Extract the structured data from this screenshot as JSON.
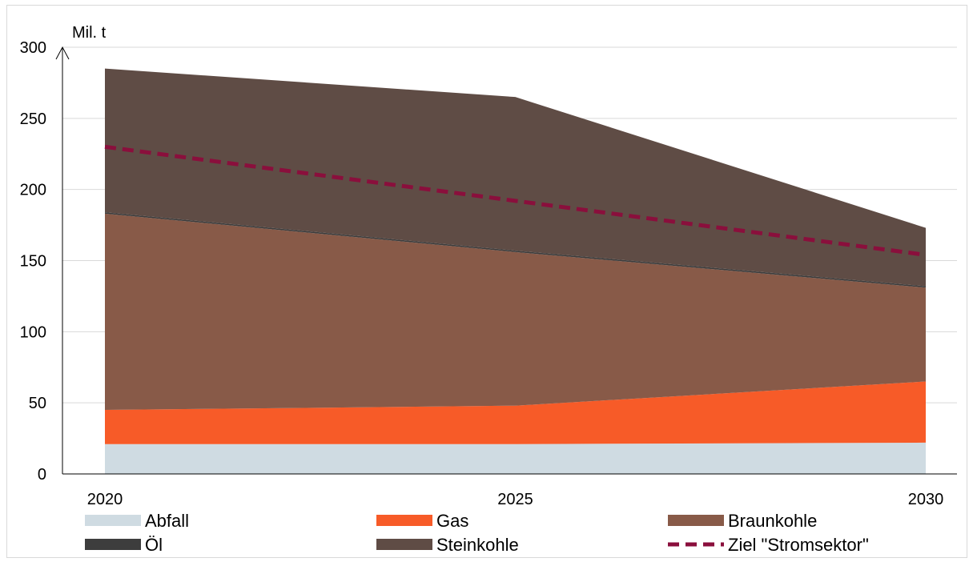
{
  "chart_data": {
    "type": "area",
    "x": [
      2020,
      2025,
      2030
    ],
    "x_tick_labels": [
      "2020",
      "2025",
      "2030"
    ],
    "y_unit": "Mil. t",
    "ylim": [
      0,
      300
    ],
    "y_ticks": [
      0,
      50,
      100,
      150,
      200,
      250,
      300
    ],
    "y_tick_labels": [
      "0",
      "50",
      "100",
      "150",
      "200",
      "250",
      "300"
    ],
    "stacked": true,
    "grid": true,
    "legend_position": "bottom",
    "series": [
      {
        "name": "Abfall",
        "color": "#cfdbe2",
        "values": [
          21,
          21,
          22
        ]
      },
      {
        "name": "Gas",
        "color": "#f75b28",
        "values": [
          24,
          27,
          43
        ]
      },
      {
        "name": "Braunkohle",
        "color": "#885a48",
        "values": [
          138,
          108,
          66
        ]
      },
      {
        "name": "Öl",
        "color": "#3d3d3d",
        "values": [
          1,
          1,
          1
        ]
      },
      {
        "name": "Steinkohle",
        "color": "#5f4c45",
        "values": [
          101,
          108,
          41
        ]
      }
    ],
    "target_line": {
      "name": "Ziel \"Stromsektor\"",
      "color": "#8a0f3c",
      "style": "dashed",
      "values": [
        230,
        192,
        154
      ]
    },
    "legend": [
      {
        "label": "Abfall",
        "kind": "box",
        "color": "#cfdbe2"
      },
      {
        "label": "Gas",
        "kind": "box",
        "color": "#f75b28"
      },
      {
        "label": "Braunkohle",
        "kind": "box",
        "color": "#885a48"
      },
      {
        "label": "Öl",
        "kind": "box",
        "color": "#3d3d3d"
      },
      {
        "label": "Steinkohle",
        "kind": "box",
        "color": "#5f4c45"
      },
      {
        "label": "Ziel \"Stromsektor\"",
        "kind": "dash",
        "color": "#8a0f3c"
      }
    ]
  }
}
